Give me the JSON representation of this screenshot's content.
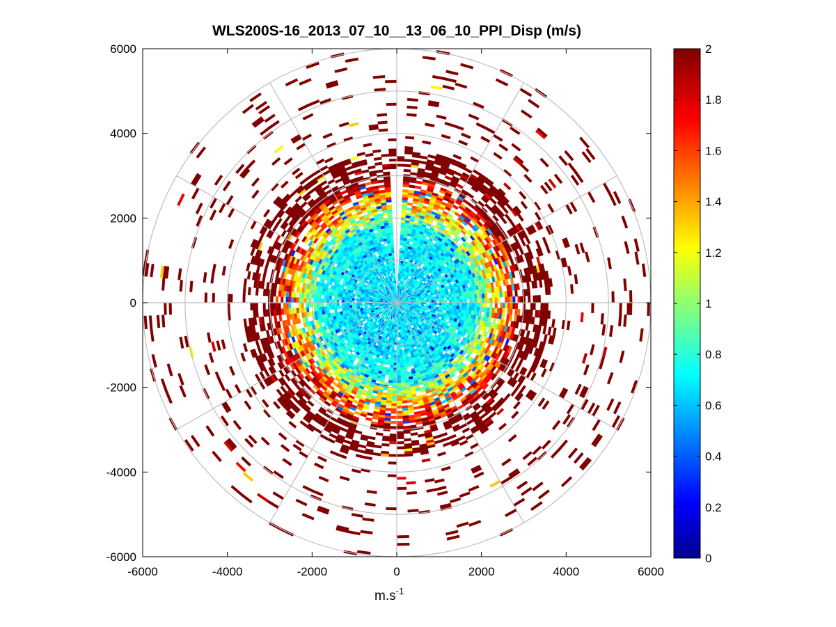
{
  "chart_data": {
    "type": "heatmap",
    "subtype": "polar-ppi",
    "title": "WLS200S-16_2013_07_10__13_06_10_PPI_Disp (m/s)",
    "xlabel_base": "m.s",
    "xlabel_exponent": "-1",
    "ylabel": "",
    "xlim": [
      -6000,
      6000
    ],
    "ylim": [
      -6000,
      6000
    ],
    "xticks": [
      -6000,
      -4000,
      -2000,
      0,
      2000,
      4000,
      6000
    ],
    "yticks": [
      -6000,
      -4000,
      -2000,
      0,
      2000,
      4000,
      6000
    ],
    "xtick_labels": [
      "-6000",
      "-4000",
      "-2000",
      "0",
      "2000",
      "4000",
      "6000"
    ],
    "ytick_labels": [
      "-6000",
      "-4000",
      "-2000",
      "0",
      "2000",
      "4000",
      "6000"
    ],
    "range_rings": [
      1000,
      2000,
      3000,
      4000,
      5000,
      6000
    ],
    "radial_spokes_deg": [
      0,
      30,
      60,
      90,
      120,
      150,
      180,
      210,
      240,
      270,
      300,
      330
    ],
    "colorbar": {
      "min": 0,
      "max": 2,
      "ticks": [
        0,
        0.2,
        0.4,
        0.6,
        0.8,
        1,
        1.2,
        1.4,
        1.6,
        1.8,
        2
      ],
      "tick_labels": [
        "0",
        "0.2",
        "0.4",
        "0.6",
        "0.8",
        "1",
        "1.2",
        "1.4",
        "1.6",
        "1.8",
        "2"
      ],
      "colormap": "jet"
    },
    "field_summary": {
      "inner_core_range_m": [
        0,
        1900
      ],
      "inner_core_value_ms": 0.7,
      "transition_band_range_m": [
        1900,
        2900
      ],
      "transition_value_ms": [
        0.9,
        1.9
      ],
      "saturated_outer_range_m": [
        2900,
        6000
      ],
      "saturated_value_ms": 2,
      "missing_sector_deg": [
        357,
        362
      ]
    },
    "colors": {
      "grid": "#bdbdbd",
      "axes": "#000000",
      "background": "#ffffff"
    }
  }
}
